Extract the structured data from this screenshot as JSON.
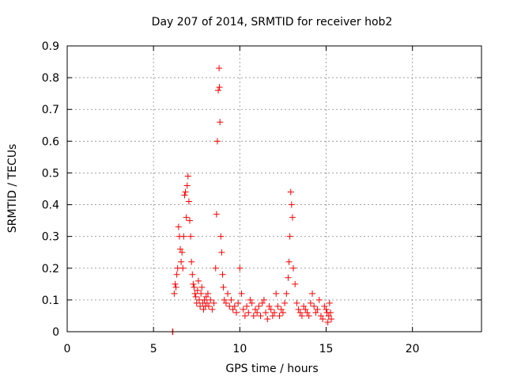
{
  "chart_data": {
    "type": "scatter",
    "title": "Day 207 of 2014, SRMTID for receiver hob2",
    "xlabel": "GPS time / hours",
    "ylabel": "SRMTID / TECUs",
    "xlim": [
      0,
      24
    ],
    "ylim": [
      0,
      0.9
    ],
    "x_ticks": [
      "0",
      "5",
      "10",
      "15",
      "20"
    ],
    "x_tick_values": [
      0,
      5,
      10,
      15,
      20
    ],
    "y_ticks": [
      "0",
      "0.1",
      "0.2",
      "0.3",
      "0.4",
      "0.5",
      "0.6",
      "0.7",
      "0.8",
      "0.9"
    ],
    "y_tick_values": [
      0,
      0.1,
      0.2,
      0.3,
      0.4,
      0.5,
      0.6,
      0.7,
      0.8,
      0.9
    ],
    "grid": true,
    "legend": "none",
    "marker": "plus",
    "series": [
      {
        "color": "#ff0000",
        "x": [
          6.1,
          6.12,
          6.2,
          6.25,
          6.3,
          6.35,
          6.4,
          6.45,
          6.5,
          6.55,
          6.6,
          6.65,
          6.7,
          6.75,
          6.8,
          6.85,
          6.9,
          6.95,
          7.0,
          7.05,
          7.1,
          7.15,
          7.2,
          7.25,
          7.3,
          7.35,
          7.4,
          7.45,
          7.5,
          7.55,
          7.6,
          7.65,
          7.7,
          7.75,
          7.8,
          7.85,
          7.9,
          7.95,
          8.0,
          8.05,
          8.1,
          8.15,
          8.2,
          8.3,
          8.4,
          8.5,
          8.6,
          8.65,
          8.7,
          8.75,
          8.8,
          8.82,
          8.85,
          8.9,
          8.95,
          9.0,
          9.05,
          9.1,
          9.2,
          9.3,
          9.4,
          9.5,
          9.6,
          9.7,
          9.8,
          9.9,
          10.0,
          10.1,
          10.2,
          10.3,
          10.4,
          10.5,
          10.6,
          10.7,
          10.8,
          10.9,
          11.0,
          11.1,
          11.2,
          11.3,
          11.4,
          11.5,
          11.6,
          11.7,
          11.8,
          11.9,
          12.0,
          12.1,
          12.2,
          12.3,
          12.4,
          12.5,
          12.6,
          12.7,
          12.8,
          12.85,
          12.9,
          12.95,
          13.0,
          13.05,
          13.1,
          13.2,
          13.3,
          13.4,
          13.5,
          13.6,
          13.7,
          13.8,
          13.9,
          14.0,
          14.1,
          14.2,
          14.3,
          14.4,
          14.5,
          14.6,
          14.7,
          14.8,
          14.9,
          15.0,
          15.05,
          15.1,
          15.15,
          15.2,
          15.25,
          15.3
        ],
        "y": [
          0.0,
          0.0,
          0.12,
          0.15,
          0.14,
          0.18,
          0.2,
          0.33,
          0.3,
          0.26,
          0.22,
          0.25,
          0.2,
          0.3,
          0.43,
          0.44,
          0.36,
          0.46,
          0.49,
          0.41,
          0.35,
          0.3,
          0.22,
          0.18,
          0.15,
          0.14,
          0.12,
          0.11,
          0.09,
          0.13,
          0.16,
          0.1,
          0.08,
          0.12,
          0.14,
          0.09,
          0.07,
          0.1,
          0.08,
          0.11,
          0.09,
          0.12,
          0.08,
          0.1,
          0.07,
          0.09,
          0.2,
          0.37,
          0.6,
          0.76,
          0.83,
          0.77,
          0.66,
          0.3,
          0.25,
          0.18,
          0.14,
          0.1,
          0.09,
          0.12,
          0.08,
          0.1,
          0.07,
          0.08,
          0.06,
          0.09,
          0.2,
          0.12,
          0.07,
          0.05,
          0.08,
          0.06,
          0.1,
          0.09,
          0.05,
          0.07,
          0.06,
          0.08,
          0.05,
          0.09,
          0.1,
          0.06,
          0.04,
          0.08,
          0.07,
          0.05,
          0.06,
          0.12,
          0.08,
          0.05,
          0.07,
          0.06,
          0.09,
          0.12,
          0.17,
          0.22,
          0.3,
          0.44,
          0.4,
          0.36,
          0.2,
          0.15,
          0.09,
          0.07,
          0.06,
          0.05,
          0.08,
          0.07,
          0.06,
          0.05,
          0.09,
          0.12,
          0.08,
          0.06,
          0.07,
          0.1,
          0.05,
          0.04,
          0.08,
          0.07,
          0.06,
          0.03,
          0.05,
          0.09,
          0.06,
          0.04
        ]
      }
    ]
  }
}
